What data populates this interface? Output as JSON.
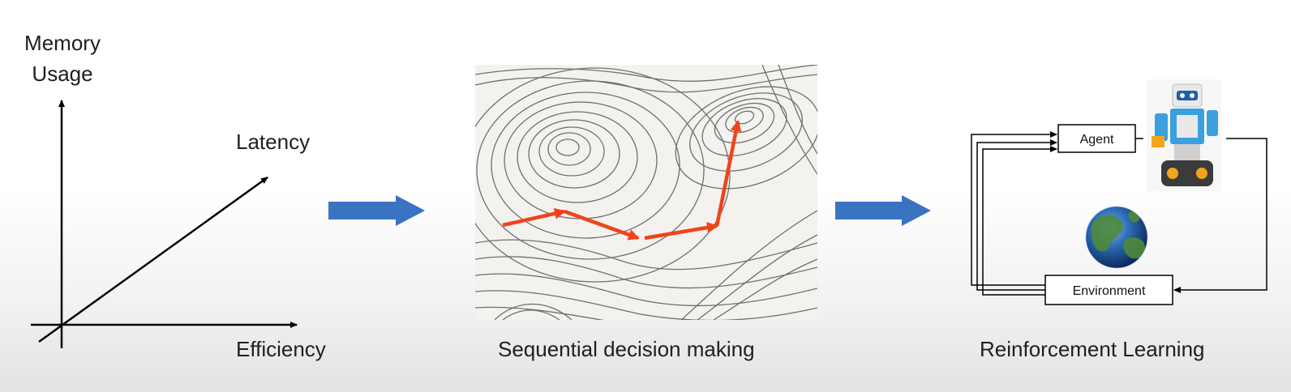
{
  "axes_panel": {
    "y_label_line1": "Memory",
    "y_label_line2": "Usage",
    "diagonal_label": "Latency",
    "x_label": "Efficiency"
  },
  "map_panel": {
    "caption": "Sequential decision making"
  },
  "rl_panel": {
    "agent_label": "Agent",
    "environment_label": "Environment",
    "caption": "Reinforcement Learning"
  },
  "colors": {
    "arrow_blue": "#3a73c1",
    "path_red": "#f0431c",
    "text": "#1f1f1f"
  }
}
